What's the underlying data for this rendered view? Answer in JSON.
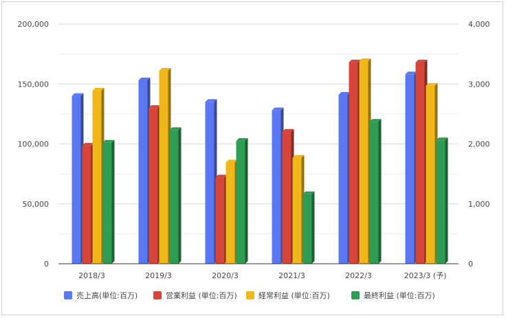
{
  "chart_data": {
    "type": "bar",
    "style": "3d-column",
    "categories": [
      "2018/3",
      "2019/3",
      "2020/3",
      "2021/3",
      "2022/3",
      "2023/3 (予)"
    ],
    "series": [
      {
        "name": "売上高(単位:百万)",
        "color": "#5b78f2",
        "axis": "left",
        "values": [
          140000,
          153000,
          135000,
          128000,
          141000,
          158000
        ]
      },
      {
        "name": "営業利益 (単位:百万)",
        "color": "#d5453a",
        "axis": "right",
        "values": [
          1970,
          2600,
          1440,
          2200,
          3360,
          3360
        ]
      },
      {
        "name": "経常利益 (単位:百万)",
        "color": "#f0b71a",
        "axis": "right",
        "values": [
          2890,
          3220,
          1690,
          1770,
          3380,
          2970
        ]
      },
      {
        "name": "最終利益 (単位:百万)",
        "color": "#2f9c52",
        "axis": "right",
        "values": [
          2020,
          2230,
          2050,
          1160,
          2370,
          2060
        ]
      }
    ],
    "y_left": {
      "range": [
        0,
        200000
      ],
      "ticks": [
        "0",
        "50,000",
        "100,000",
        "150,000",
        "200,000"
      ]
    },
    "y_right": {
      "range": [
        0,
        4000
      ],
      "ticks": [
        "0",
        "1,000",
        "2,000",
        "3,000",
        "4,000"
      ]
    },
    "grid": true,
    "legend_position": "bottom"
  }
}
